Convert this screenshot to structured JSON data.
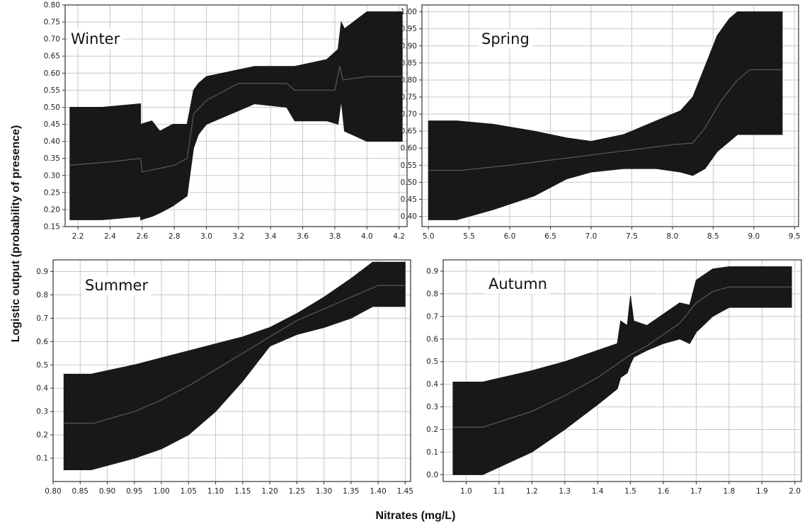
{
  "figure": {
    "ylabel": "Logistic output (probability of presence)",
    "xlabel": "Nitrates (mg/L)"
  },
  "colors": {
    "band": "#181818",
    "line": "#555555",
    "grid": "#c8c8c8"
  },
  "chart_data": [
    {
      "type": "area",
      "title": "Winter",
      "xlim": [
        2.12,
        4.25
      ],
      "ylim": [
        0.15,
        0.8
      ],
      "xticks": [
        2.2,
        2.4,
        2.6,
        2.8,
        3.0,
        3.2,
        3.4,
        3.6,
        3.8,
        4.0,
        4.2
      ],
      "yticks": [
        0.15,
        0.2,
        0.25,
        0.3,
        0.35,
        0.4,
        0.45,
        0.5,
        0.55,
        0.6,
        0.65,
        0.7,
        0.75,
        0.8
      ],
      "tick_decimals": [
        1,
        2
      ],
      "grid": true,
      "series": [
        {
          "type": "band",
          "x": [
            2.15,
            2.35,
            2.59,
            2.59,
            2.66,
            2.71,
            2.79,
            2.88,
            2.92,
            2.95,
            3.0,
            3.2,
            3.3,
            3.5,
            3.55,
            3.75,
            3.82,
            3.84,
            3.86,
            4.0,
            4.22
          ],
          "upper": [
            0.5,
            0.5,
            0.51,
            0.45,
            0.46,
            0.43,
            0.45,
            0.45,
            0.55,
            0.57,
            0.59,
            0.61,
            0.62,
            0.62,
            0.62,
            0.64,
            0.67,
            0.75,
            0.73,
            0.78,
            0.78
          ],
          "lower": [
            0.17,
            0.17,
            0.18,
            0.17,
            0.18,
            0.19,
            0.21,
            0.24,
            0.38,
            0.42,
            0.45,
            0.49,
            0.51,
            0.5,
            0.46,
            0.46,
            0.45,
            0.52,
            0.43,
            0.4,
            0.4
          ]
        },
        {
          "type": "line",
          "x": [
            2.15,
            2.4,
            2.59,
            2.6,
            2.7,
            2.8,
            2.88,
            2.92,
            3.0,
            3.2,
            3.5,
            3.55,
            3.8,
            3.83,
            3.85,
            4.0,
            4.22
          ],
          "y": [
            0.33,
            0.34,
            0.35,
            0.31,
            0.32,
            0.33,
            0.35,
            0.48,
            0.52,
            0.57,
            0.57,
            0.55,
            0.55,
            0.62,
            0.58,
            0.59,
            0.59
          ]
        }
      ]
    },
    {
      "type": "area",
      "title": "Spring",
      "xlim": [
        4.92,
        9.55
      ],
      "ylim": [
        0.37,
        1.02
      ],
      "xticks": [
        5.0,
        5.5,
        6.0,
        6.5,
        7.0,
        7.5,
        8.0,
        8.5,
        9.0,
        9.5
      ],
      "yticks": [
        0.4,
        0.45,
        0.5,
        0.55,
        0.6,
        0.65,
        0.7,
        0.75,
        0.8,
        0.85,
        0.9,
        0.95,
        1.0
      ],
      "tick_decimals": [
        1,
        2
      ],
      "grid": true,
      "series": [
        {
          "type": "band",
          "x": [
            5.0,
            5.35,
            5.8,
            6.3,
            6.7,
            7.0,
            7.4,
            7.8,
            8.1,
            8.25,
            8.4,
            8.55,
            8.7,
            8.8,
            8.9,
            9.35
          ],
          "upper": [
            0.68,
            0.68,
            0.67,
            0.65,
            0.63,
            0.62,
            0.64,
            0.68,
            0.71,
            0.75,
            0.84,
            0.93,
            0.98,
            1.0,
            1.0,
            1.0
          ],
          "lower": [
            0.39,
            0.39,
            0.42,
            0.46,
            0.51,
            0.53,
            0.54,
            0.54,
            0.53,
            0.52,
            0.54,
            0.59,
            0.62,
            0.64,
            0.64,
            0.64
          ]
        },
        {
          "type": "line",
          "x": [
            5.0,
            5.4,
            6.0,
            6.5,
            7.0,
            7.5,
            8.0,
            8.25,
            8.4,
            8.6,
            8.8,
            8.95,
            9.35
          ],
          "y": [
            0.535,
            0.535,
            0.55,
            0.565,
            0.58,
            0.595,
            0.61,
            0.615,
            0.66,
            0.74,
            0.8,
            0.83,
            0.83
          ]
        }
      ]
    },
    {
      "type": "area",
      "title": "Summer",
      "xlim": [
        0.8,
        1.46
      ],
      "ylim": [
        0.0,
        0.95
      ],
      "xticks": [
        0.8,
        0.85,
        0.9,
        0.95,
        1.0,
        1.05,
        1.1,
        1.15,
        1.2,
        1.25,
        1.3,
        1.35,
        1.4,
        1.45
      ],
      "yticks": [
        0.1,
        0.2,
        0.3,
        0.4,
        0.5,
        0.6,
        0.7,
        0.8,
        0.9
      ],
      "tick_decimals": [
        2,
        1
      ],
      "grid": true,
      "series": [
        {
          "type": "band",
          "x": [
            0.82,
            0.87,
            0.95,
            1.0,
            1.05,
            1.1,
            1.15,
            1.2,
            1.25,
            1.3,
            1.35,
            1.39,
            1.45
          ],
          "upper": [
            0.46,
            0.46,
            0.5,
            0.53,
            0.56,
            0.59,
            0.62,
            0.66,
            0.72,
            0.79,
            0.87,
            0.94,
            0.94
          ],
          "lower": [
            0.05,
            0.05,
            0.1,
            0.14,
            0.2,
            0.3,
            0.43,
            0.58,
            0.63,
            0.66,
            0.7,
            0.75,
            0.75
          ]
        },
        {
          "type": "line",
          "x": [
            0.82,
            0.875,
            0.95,
            1.0,
            1.05,
            1.1,
            1.15,
            1.2,
            1.25,
            1.3,
            1.35,
            1.4,
            1.45
          ],
          "y": [
            0.25,
            0.25,
            0.3,
            0.35,
            0.41,
            0.48,
            0.55,
            0.62,
            0.69,
            0.74,
            0.79,
            0.84,
            0.84
          ]
        }
      ]
    },
    {
      "type": "area",
      "title": "Autumn",
      "xlim": [
        0.93,
        2.02
      ],
      "ylim": [
        -0.03,
        0.95
      ],
      "xticks": [
        1.0,
        1.1,
        1.2,
        1.3,
        1.4,
        1.5,
        1.6,
        1.7,
        1.8,
        1.9,
        2.0
      ],
      "yticks": [
        0.0,
        0.1,
        0.2,
        0.3,
        0.4,
        0.5,
        0.6,
        0.7,
        0.8,
        0.9
      ],
      "tick_decimals": [
        1,
        1
      ],
      "grid": true,
      "series": [
        {
          "type": "band",
          "x": [
            0.96,
            1.05,
            1.2,
            1.3,
            1.4,
            1.46,
            1.47,
            1.49,
            1.5,
            1.51,
            1.55,
            1.6,
            1.65,
            1.68,
            1.7,
            1.75,
            1.8,
            1.99
          ],
          "upper": [
            0.41,
            0.41,
            0.46,
            0.5,
            0.55,
            0.58,
            0.68,
            0.66,
            0.79,
            0.68,
            0.66,
            0.71,
            0.76,
            0.75,
            0.86,
            0.91,
            0.92,
            0.92
          ],
          "lower": [
            0.0,
            0.0,
            0.1,
            0.2,
            0.31,
            0.38,
            0.43,
            0.45,
            0.49,
            0.52,
            0.55,
            0.58,
            0.6,
            0.58,
            0.63,
            0.7,
            0.74,
            0.74
          ]
        },
        {
          "type": "line",
          "x": [
            0.96,
            1.05,
            1.2,
            1.3,
            1.4,
            1.47,
            1.5,
            1.55,
            1.6,
            1.65,
            1.7,
            1.75,
            1.8,
            1.99
          ],
          "y": [
            0.21,
            0.21,
            0.28,
            0.35,
            0.43,
            0.5,
            0.53,
            0.57,
            0.62,
            0.67,
            0.76,
            0.81,
            0.83,
            0.83
          ]
        }
      ]
    }
  ]
}
